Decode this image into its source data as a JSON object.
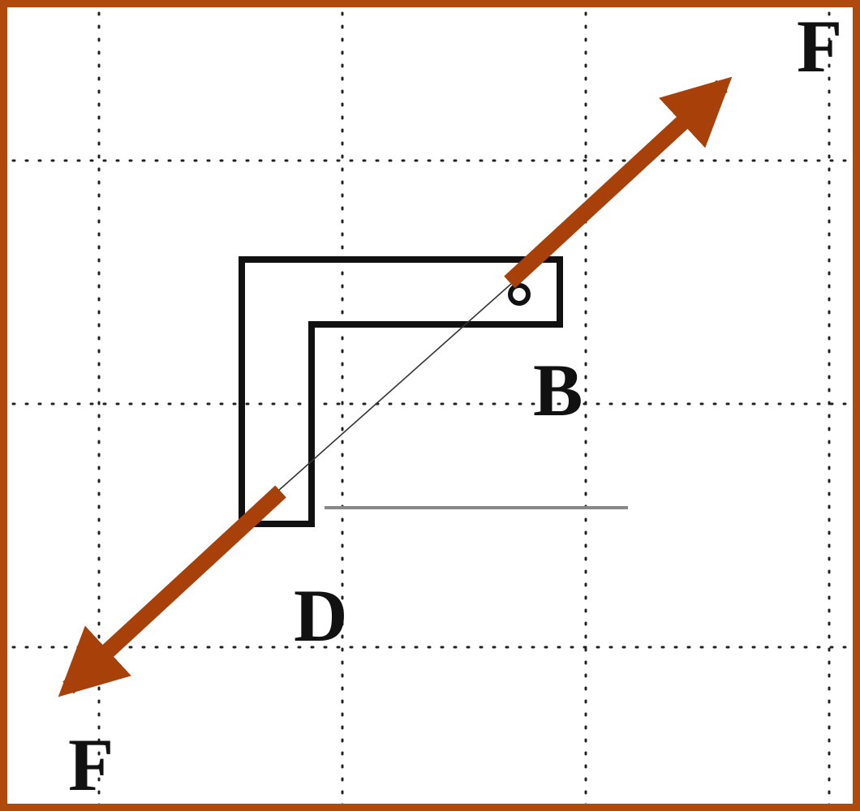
{
  "figure": {
    "labels": {
      "force_top": "F",
      "force_bottom": "F",
      "point_b": "B",
      "point_d": "D"
    },
    "colors": {
      "frame": "#b04a0c",
      "force_arrow": "#a8400a",
      "bracket": "#111111",
      "grid": "#222222",
      "reference_line": "#888888"
    },
    "grid": {
      "style": "dotted"
    }
  }
}
